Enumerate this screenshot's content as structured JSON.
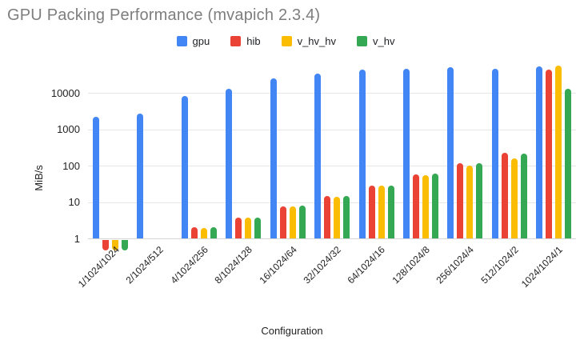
{
  "title": "GPU Packing Performance (mvapich 2.3.4)",
  "chart_data": {
    "type": "bar",
    "title": "GPU Packing Performance (mvapich 2.3.4)",
    "xlabel": "Configuration",
    "ylabel": "MiB/s",
    "y_scale": "log",
    "ylim": [
      1,
      70000
    ],
    "y_ticks": [
      1,
      10,
      100,
      1000,
      10000
    ],
    "y_tick_labels": [
      "1",
      "10",
      "100",
      "1000",
      "10000"
    ],
    "grid": true,
    "legend_position": "top",
    "categories": [
      "1/1024/1024",
      "2/1024/512",
      "4/1024/256",
      "8/1024/128",
      "16/1024/64",
      "32/1024/32",
      "64/1024/16",
      "128/1024/8",
      "256/1024/4",
      "512/1024/2",
      "1024/1024/1"
    ],
    "series": [
      {
        "name": "gpu",
        "color": "#4285F4",
        "values": [
          2200,
          2800,
          8500,
          13000,
          25000,
          35000,
          44000,
          48000,
          52000,
          46000,
          55000
        ]
      },
      {
        "name": "hib",
        "color": "#EA4335",
        "values": [
          0.5,
          null,
          2,
          3.7,
          7.6,
          15,
          29,
          59,
          120,
          230,
          44000
        ]
      },
      {
        "name": "v_hv_hv",
        "color": "#FBBC04",
        "values": [
          0.5,
          null,
          1.9,
          3.7,
          7.8,
          14,
          28,
          56,
          100,
          160,
          57000
        ]
      },
      {
        "name": "v_hv",
        "color": "#34A853",
        "values": [
          0.5,
          null,
          2,
          3.7,
          8,
          15,
          29,
          62,
          120,
          220,
          13500
        ]
      }
    ]
  }
}
